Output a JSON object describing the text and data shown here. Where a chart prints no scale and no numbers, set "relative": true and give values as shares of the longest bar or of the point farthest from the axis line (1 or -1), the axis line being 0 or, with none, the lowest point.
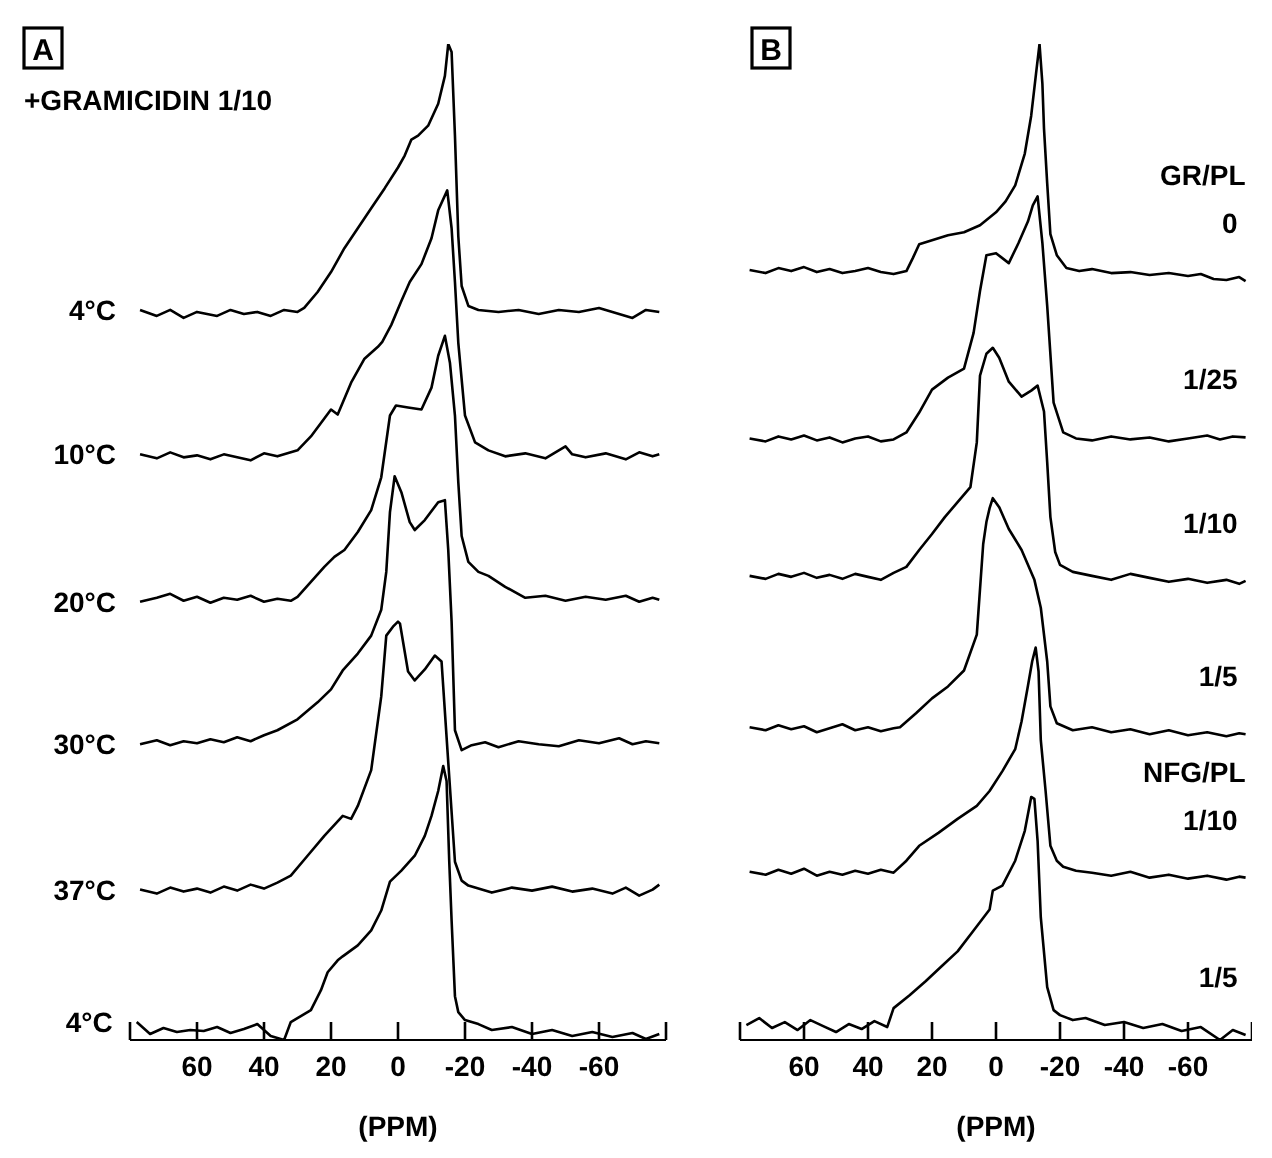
{
  "chart_data": [
    {
      "type": "line",
      "title": "A",
      "xlabel": "(PPM)",
      "relative": true,
      "marker": "none",
      "line_style": "solid",
      "xlim": [
        80,
        -80
      ],
      "xticks": [
        60,
        40,
        20,
        0,
        -20,
        -40,
        -60
      ],
      "annotations": [
        "+GRAMICIDIN 1/10"
      ],
      "series": [
        {
          "name": "4°C",
          "color": "#000000",
          "x": [
            77,
            72,
            68,
            64,
            60,
            54,
            50,
            46,
            42,
            38,
            34,
            30,
            28,
            24,
            20,
            16,
            12,
            8,
            4,
            0,
            -2,
            -4,
            -6,
            -9,
            -12,
            -14,
            -15,
            -16,
            -17,
            -18,
            -19,
            -21,
            -24,
            -30,
            -36,
            -42,
            -48,
            -54,
            -60,
            -66,
            -70,
            -74,
            -78
          ],
          "values": [
            0.733,
            0.727,
            0.733,
            0.725,
            0.731,
            0.727,
            0.733,
            0.729,
            0.731,
            0.727,
            0.733,
            0.731,
            0.735,
            0.751,
            0.771,
            0.795,
            0.815,
            0.835,
            0.855,
            0.876,
            0.888,
            0.904,
            0.908,
            0.918,
            0.94,
            0.968,
            1.0,
            0.992,
            0.908,
            0.807,
            0.757,
            0.737,
            0.733,
            0.731,
            0.733,
            0.729,
            0.733,
            0.731,
            0.735,
            0.729,
            0.725,
            0.733,
            0.731
          ]
        },
        {
          "name": "10°C",
          "color": "#000000",
          "x": [
            77,
            72,
            68,
            64,
            60,
            56,
            52,
            48,
            44,
            40,
            36,
            32,
            30,
            26,
            22,
            20,
            18,
            14,
            10,
            6,
            4.7,
            2,
            -1,
            -3.5,
            -7,
            -10,
            -12,
            -14.7,
            -16,
            -17,
            -18,
            -20,
            -23,
            -27,
            -32,
            -38,
            -44,
            -50,
            -52,
            -56,
            -62,
            -68,
            -72,
            -76,
            -78
          ],
          "values": [
            0.588,
            0.584,
            0.59,
            0.585,
            0.587,
            0.583,
            0.588,
            0.585,
            0.582,
            0.589,
            0.586,
            0.59,
            0.592,
            0.606,
            0.624,
            0.633,
            0.628,
            0.66,
            0.684,
            0.696,
            0.701,
            0.718,
            0.742,
            0.761,
            0.779,
            0.805,
            0.833,
            0.853,
            0.815,
            0.761,
            0.7,
            0.627,
            0.6,
            0.592,
            0.586,
            0.589,
            0.584,
            0.596,
            0.588,
            0.585,
            0.589,
            0.583,
            0.59,
            0.586,
            0.588
          ]
        },
        {
          "name": "20°C",
          "color": "#000000",
          "x": [
            77,
            72,
            68,
            64,
            60,
            56,
            52,
            48,
            44,
            40,
            36,
            32,
            30,
            26,
            22,
            19,
            16,
            12,
            8,
            5,
            2.4,
            0.6,
            -3,
            -7,
            -10,
            -12,
            -14,
            -15.5,
            -17,
            -18,
            -19,
            -21,
            -24,
            -27,
            -32,
            -38,
            -44,
            -50,
            -56,
            -62,
            -68,
            -72,
            -76,
            -78
          ],
          "values": [
            0.44,
            0.444,
            0.448,
            0.441,
            0.445,
            0.439,
            0.444,
            0.442,
            0.446,
            0.44,
            0.443,
            0.441,
            0.445,
            0.46,
            0.475,
            0.485,
            0.492,
            0.51,
            0.532,
            0.565,
            0.627,
            0.637,
            0.635,
            0.633,
            0.655,
            0.687,
            0.707,
            0.68,
            0.627,
            0.56,
            0.506,
            0.48,
            0.47,
            0.466,
            0.455,
            0.444,
            0.446,
            0.441,
            0.445,
            0.442,
            0.446,
            0.44,
            0.444,
            0.442
          ]
        },
        {
          "name": "30°C",
          "color": "#000000",
          "x": [
            77,
            72,
            68,
            64,
            60,
            56,
            52,
            48,
            44,
            40,
            36,
            30,
            24,
            20,
            16.5,
            12,
            8,
            5,
            3.5,
            2.4,
            1,
            -1,
            -3.5,
            -5,
            -8,
            -12,
            -14,
            -15,
            -16,
            -17,
            -19,
            -22,
            -26,
            -30,
            -36,
            -42,
            -48,
            -54,
            -60,
            -66,
            -70,
            -74,
            -78
          ],
          "values": [
            0.297,
            0.301,
            0.296,
            0.3,
            0.298,
            0.302,
            0.299,
            0.304,
            0.3,
            0.306,
            0.311,
            0.322,
            0.339,
            0.352,
            0.371,
            0.388,
            0.406,
            0.432,
            0.47,
            0.53,
            0.566,
            0.55,
            0.52,
            0.512,
            0.522,
            0.54,
            0.542,
            0.492,
            0.42,
            0.311,
            0.291,
            0.296,
            0.299,
            0.294,
            0.3,
            0.297,
            0.295,
            0.301,
            0.298,
            0.303,
            0.297,
            0.3,
            0.298
          ]
        },
        {
          "name": "37°C",
          "color": "#000000",
          "x": [
            77,
            72,
            68,
            64,
            60,
            56,
            52,
            48,
            44,
            40,
            36,
            32,
            27,
            22,
            16.5,
            14,
            12,
            8,
            5,
            3.5,
            1.5,
            0,
            -0.6,
            -3,
            -5,
            -8,
            -11,
            -13,
            -15,
            -17,
            -19,
            -21,
            -24,
            -28,
            -34,
            -40,
            -46,
            -52,
            -58,
            -64,
            -68,
            -72,
            -76,
            -78
          ],
          "values": [
            0.151,
            0.147,
            0.153,
            0.149,
            0.152,
            0.148,
            0.154,
            0.15,
            0.156,
            0.152,
            0.158,
            0.165,
            0.185,
            0.205,
            0.225,
            0.222,
            0.235,
            0.271,
            0.345,
            0.406,
            0.415,
            0.42,
            0.418,
            0.37,
            0.361,
            0.372,
            0.386,
            0.38,
            0.279,
            0.179,
            0.16,
            0.155,
            0.152,
            0.148,
            0.153,
            0.15,
            0.154,
            0.149,
            0.152,
            0.147,
            0.153,
            0.145,
            0.151,
            0.156
          ]
        },
        {
          "name": "4°C",
          "color": "#000000",
          "x": [
            78,
            74,
            70,
            66,
            62,
            58,
            54,
            50,
            46,
            42,
            38,
            34,
            32,
            29,
            26,
            23,
            21,
            18,
            16.5,
            12,
            8,
            5,
            2.4,
            -1,
            -5,
            -8,
            -10,
            -12,
            -13.5,
            -14.5,
            -15.3,
            -16,
            -17,
            -18,
            -20,
            -24,
            -28,
            -34,
            -40,
            -46,
            -52,
            -58,
            -64,
            -70,
            -74,
            -78
          ],
          "values": [
            0.018,
            0.006,
            0.012,
            0.008,
            0.01,
            0.009,
            0.013,
            0.007,
            0.011,
            0.016,
            0.004,
            0,
            0.018,
            0.024,
            0.03,
            0.05,
            0.068,
            0.08,
            0.084,
            0.095,
            0.11,
            0.13,
            0.159,
            0.17,
            0.185,
            0.205,
            0.225,
            0.25,
            0.275,
            0.26,
            0.179,
            0.12,
            0.044,
            0.028,
            0.02,
            0.016,
            0.01,
            0.013,
            0.006,
            0.01,
            0.004,
            0.008,
            0.003,
            0.007,
            0.001,
            0.006
          ]
        }
      ]
    },
    {
      "type": "line",
      "title": "B",
      "xlabel": "(PPM)",
      "relative": true,
      "marker": "none",
      "line_style": "solid",
      "xlim": [
        80,
        -80
      ],
      "xticks": [
        60,
        40,
        20,
        0,
        -20,
        -40,
        -60
      ],
      "annotations": [
        "GR/PL",
        "NFG/PL"
      ],
      "series": [
        {
          "name": "0",
          "color": "#000000",
          "x": [
            77,
            72,
            68,
            64,
            60,
            56,
            52,
            48,
            44,
            40,
            36,
            32,
            28,
            26,
            24,
            20,
            15,
            10,
            5,
            0,
            -3,
            -6,
            -9,
            -11,
            -12.5,
            -13.6,
            -14.5,
            -15,
            -16,
            -17,
            -19,
            -22,
            -26,
            -30,
            -36,
            -42,
            -48,
            -54,
            -60,
            -64,
            -68,
            -72,
            -76,
            -78
          ],
          "values": [
            0.773,
            0.77,
            0.775,
            0.772,
            0.776,
            0.771,
            0.774,
            0.77,
            0.772,
            0.775,
            0.771,
            0.769,
            0.772,
            0.785,
            0.799,
            0.803,
            0.808,
            0.811,
            0.818,
            0.831,
            0.842,
            0.858,
            0.89,
            0.928,
            0.97,
            1.0,
            0.96,
            0.915,
            0.86,
            0.809,
            0.788,
            0.775,
            0.772,
            0.774,
            0.77,
            0.771,
            0.768,
            0.77,
            0.767,
            0.769,
            0.764,
            0.763,
            0.766,
            0.762
          ]
        },
        {
          "name": "1/25",
          "color": "#000000",
          "x": [
            77,
            72,
            68,
            64,
            60,
            56,
            52,
            48,
            44,
            40,
            36,
            32,
            28,
            24,
            20,
            15,
            10,
            7,
            5,
            3,
            0,
            -4,
            -7,
            -10,
            -11.5,
            -13,
            -14.5,
            -16,
            -18,
            -21,
            -25,
            -30,
            -36,
            -42,
            -48,
            -54,
            -60,
            -66,
            -70,
            -74,
            -78
          ],
          "values": [
            0.604,
            0.601,
            0.606,
            0.603,
            0.607,
            0.602,
            0.605,
            0.6,
            0.604,
            0.606,
            0.601,
            0.603,
            0.61,
            0.63,
            0.653,
            0.665,
            0.674,
            0.71,
            0.752,
            0.788,
            0.79,
            0.78,
            0.8,
            0.822,
            0.838,
            0.847,
            0.8,
            0.737,
            0.64,
            0.61,
            0.604,
            0.602,
            0.606,
            0.603,
            0.605,
            0.601,
            0.604,
            0.607,
            0.603,
            0.606,
            0.605
          ]
        },
        {
          "name": "1/10",
          "color": "#000000",
          "x": [
            77,
            72,
            68,
            64,
            60,
            56,
            52,
            48,
            44,
            40,
            36,
            32,
            28,
            24,
            20,
            16,
            12,
            8,
            6,
            5,
            3,
            1,
            -1,
            -4,
            -8,
            -11,
            -13,
            -15,
            -16,
            -17,
            -18.5,
            -20,
            -24,
            -30,
            -36,
            -42,
            -48,
            -54,
            -60,
            -66,
            -72,
            -76,
            -78
          ],
          "values": [
            0.466,
            0.463,
            0.468,
            0.465,
            0.469,
            0.464,
            0.467,
            0.463,
            0.468,
            0.465,
            0.462,
            0.469,
            0.475,
            0.492,
            0.508,
            0.525,
            0.54,
            0.555,
            0.6,
            0.667,
            0.689,
            0.695,
            0.685,
            0.661,
            0.646,
            0.652,
            0.657,
            0.631,
            0.58,
            0.525,
            0.49,
            0.477,
            0.47,
            0.466,
            0.462,
            0.468,
            0.464,
            0.46,
            0.463,
            0.459,
            0.462,
            0.458,
            0.461
          ]
        },
        {
          "name": "1/5",
          "color": "#000000",
          "x": [
            77,
            72,
            68,
            64,
            60,
            56,
            52,
            48,
            44,
            40,
            36,
            32,
            30,
            25,
            20,
            15,
            10,
            6,
            4,
            3,
            2,
            1,
            -1,
            -4,
            -8,
            -12,
            -14,
            -16,
            -17,
            -19,
            -24,
            -30,
            -36,
            -42,
            -48,
            -54,
            -60,
            -66,
            -72,
            -76,
            -78
          ],
          "values": [
            0.314,
            0.311,
            0.316,
            0.312,
            0.315,
            0.309,
            0.313,
            0.317,
            0.311,
            0.314,
            0.31,
            0.313,
            0.314,
            0.328,
            0.343,
            0.355,
            0.371,
            0.407,
            0.498,
            0.52,
            0.534,
            0.544,
            0.535,
            0.513,
            0.492,
            0.462,
            0.434,
            0.38,
            0.335,
            0.318,
            0.311,
            0.314,
            0.309,
            0.312,
            0.307,
            0.311,
            0.306,
            0.309,
            0.305,
            0.308,
            0.307
          ]
        },
        {
          "name": "1/10",
          "color": "#000000",
          "x": [
            77,
            72,
            68,
            64,
            60,
            56,
            52,
            48,
            44,
            40,
            36,
            32,
            28,
            24,
            18,
            12,
            6,
            2,
            -2,
            -6,
            -8,
            -10,
            -11.3,
            -12.4,
            -13.3,
            -14,
            -15.5,
            -17,
            -19,
            -21,
            -25,
            -30,
            -36,
            -42,
            -48,
            -54,
            -60,
            -66,
            -72,
            -76,
            -78
          ],
          "values": [
            0.169,
            0.166,
            0.171,
            0.167,
            0.172,
            0.165,
            0.169,
            0.166,
            0.17,
            0.167,
            0.171,
            0.168,
            0.18,
            0.195,
            0.208,
            0.222,
            0.235,
            0.25,
            0.27,
            0.292,
            0.32,
            0.356,
            0.38,
            0.394,
            0.37,
            0.301,
            0.25,
            0.195,
            0.18,
            0.174,
            0.17,
            0.168,
            0.165,
            0.169,
            0.163,
            0.166,
            0.162,
            0.165,
            0.161,
            0.164,
            0.163
          ]
        },
        {
          "name": "1/5",
          "color": "#000000",
          "x": [
            78,
            74,
            70,
            66,
            62,
            58,
            54,
            50,
            46,
            42,
            38,
            34,
            32,
            27,
            22,
            17,
            12,
            7,
            2,
            1,
            -2,
            -6,
            -9,
            -11,
            -12,
            -13,
            -14,
            -16,
            -18,
            -20,
            -24,
            -28,
            -34,
            -40,
            -46,
            -52,
            -58,
            -64,
            -70,
            -74,
            -78
          ],
          "values": [
            0.015,
            0.022,
            0.012,
            0.018,
            0.01,
            0.02,
            0.014,
            0.008,
            0.016,
            0.011,
            0.019,
            0.013,
            0.032,
            0.045,
            0.059,
            0.074,
            0.089,
            0.11,
            0.131,
            0.15,
            0.155,
            0.18,
            0.21,
            0.244,
            0.242,
            0.2,
            0.123,
            0.053,
            0.03,
            0.025,
            0.02,
            0.022,
            0.015,
            0.018,
            0.012,
            0.016,
            0.009,
            0.013,
            0,
            0.01,
            0.005
          ]
        }
      ]
    }
  ]
}
